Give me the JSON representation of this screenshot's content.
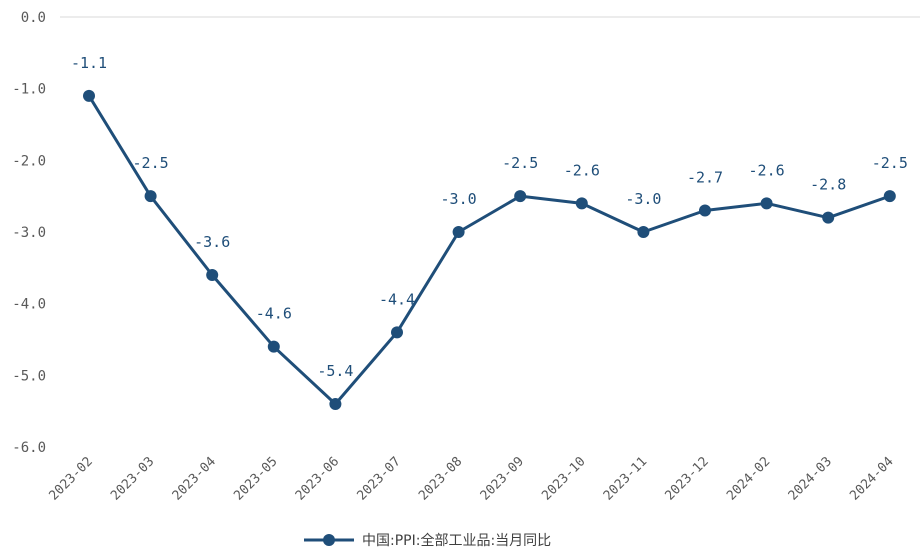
{
  "chart_data": {
    "type": "line",
    "categories": [
      "2023-02",
      "2023-03",
      "2023-04",
      "2023-05",
      "2023-06",
      "2023-07",
      "2023-08",
      "2023-09",
      "2023-10",
      "2023-11",
      "2023-12",
      "2024-02",
      "2024-03",
      "2024-04"
    ],
    "series": [
      {
        "name": "中国:PPI:全部工业品:当月同比",
        "values": [
          -1.1,
          -2.5,
          -3.6,
          -4.6,
          -5.4,
          -4.4,
          -3.0,
          -2.5,
          -2.6,
          -3.0,
          -2.7,
          -2.6,
          -2.8,
          -2.5
        ],
        "data_labels": [
          "-1.1",
          "-2.5",
          "-3.6",
          "-4.6",
          "-5.4",
          "-4.4",
          "-3.0",
          "-2.5",
          "-2.6",
          "-3.0",
          "-2.7",
          "-2.6",
          "-2.8",
          "-2.5"
        ]
      }
    ],
    "y_ticks": [
      "0.0",
      "-1.0",
      "-2.0",
      "-3.0",
      "-4.0",
      "-5.0",
      "-6.0"
    ],
    "y_tick_values": [
      0,
      -1,
      -2,
      -3,
      -4,
      -5,
      -6
    ],
    "ylim": [
      -6,
      0
    ],
    "grid": false,
    "legend_position": "bottom-center",
    "colors": {
      "series": "#1f4e79",
      "axis": "#d9d9d9",
      "tick_text": "#595959"
    }
  }
}
